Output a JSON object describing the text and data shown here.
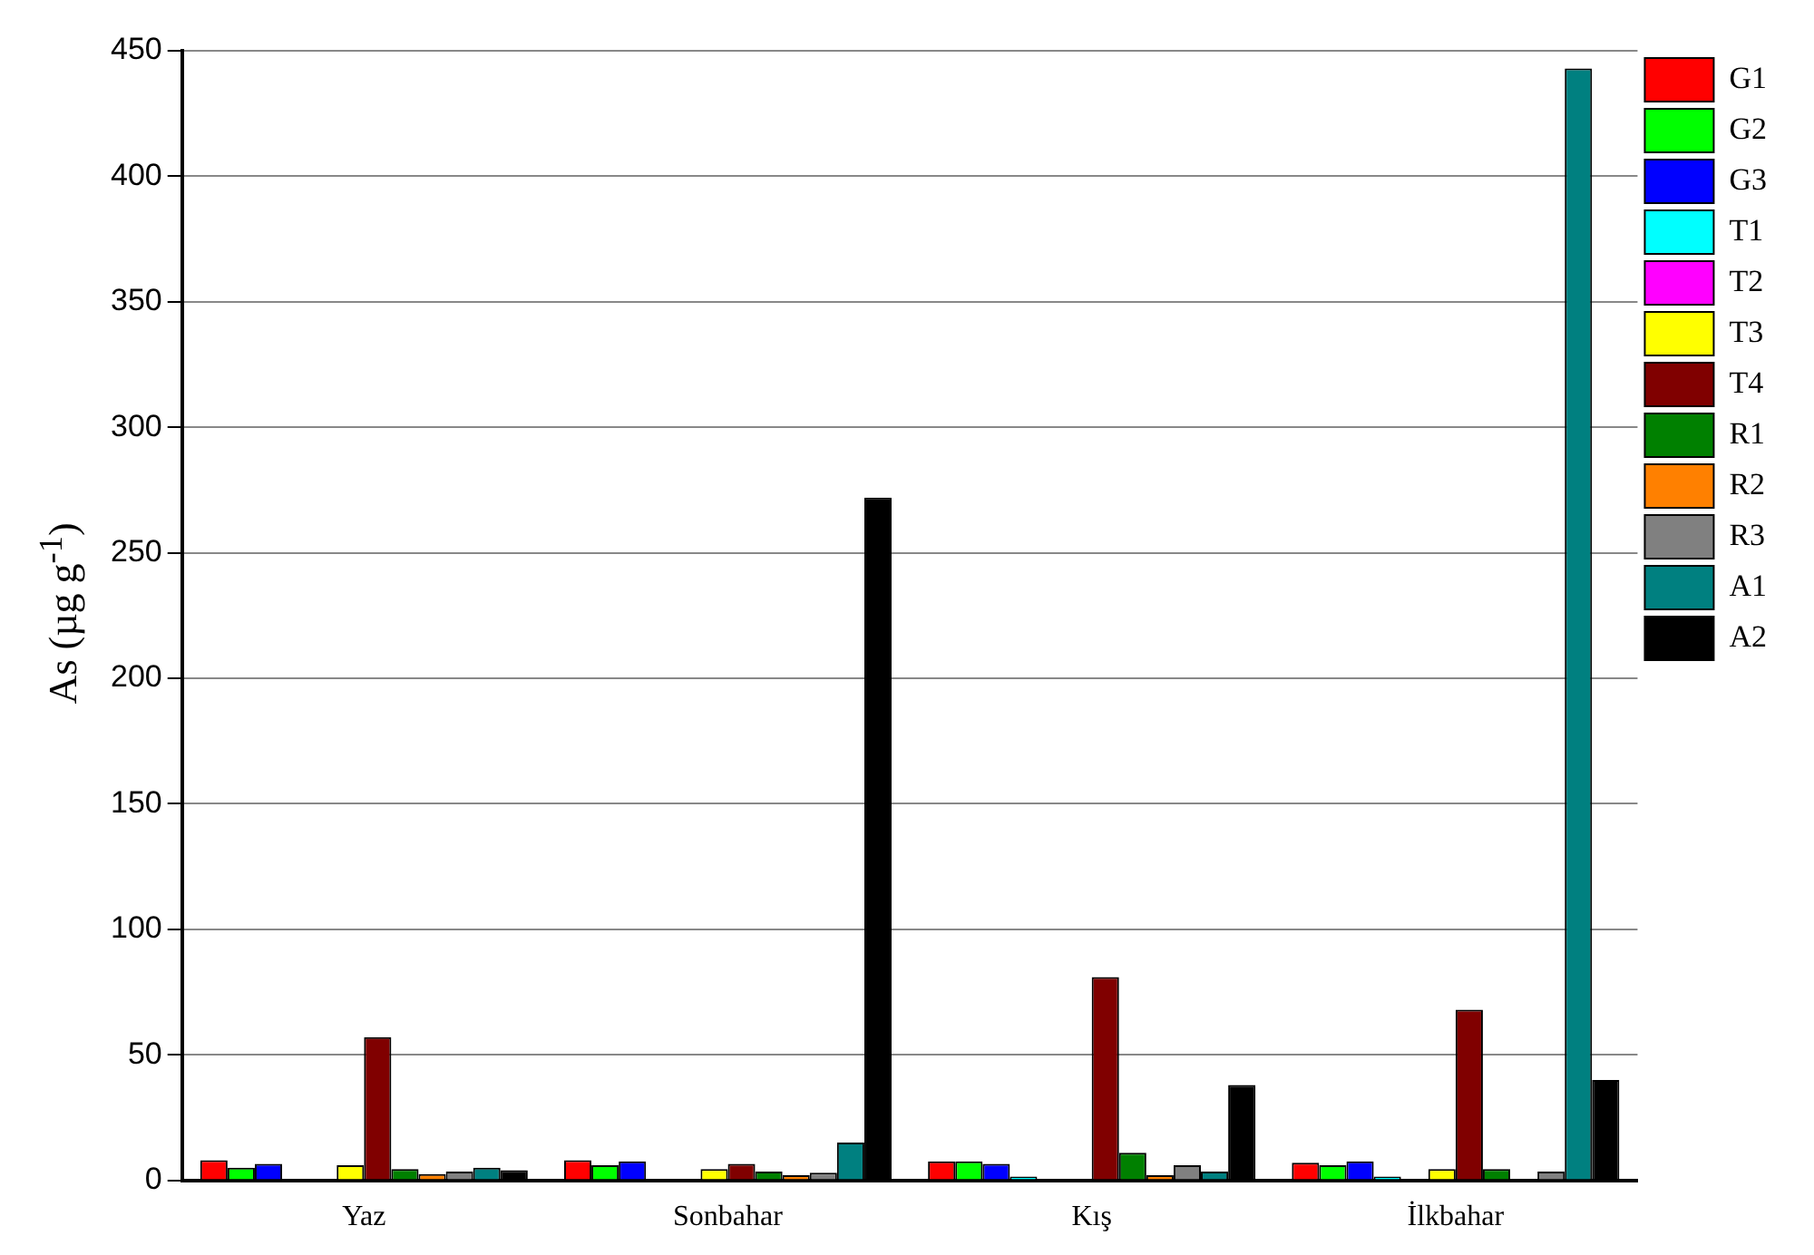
{
  "chart_data": {
    "type": "bar",
    "ylabel": "As (µg g$^{-1}$)",
    "categories": [
      "Yaz",
      "Sonbahar",
      "Kış",
      "İlkbahar"
    ],
    "series": [
      {
        "name": "G1",
        "color": "#ff0000",
        "values": [
          8,
          8,
          7.5,
          7
        ]
      },
      {
        "name": "G2",
        "color": "#00ff00",
        "values": [
          5,
          6,
          7.5,
          6
        ]
      },
      {
        "name": "G3",
        "color": "#0000ff",
        "values": [
          6.5,
          7.5,
          6.5,
          7.5
        ]
      },
      {
        "name": "T1",
        "color": "#00ffff",
        "values": [
          null,
          null,
          1.5,
          1.5
        ]
      },
      {
        "name": "T2",
        "color": "#ff00ff",
        "values": [
          0,
          0,
          null,
          0
        ]
      },
      {
        "name": "T3",
        "color": "#ffff00",
        "values": [
          6,
          4.5,
          0,
          4.5
        ]
      },
      {
        "name": "T4",
        "color": "#800000",
        "values": [
          57,
          6.5,
          81,
          68
        ]
      },
      {
        "name": "R1",
        "color": "#008000",
        "values": [
          4.5,
          3.5,
          11,
          4.5
        ]
      },
      {
        "name": "R2",
        "color": "#ff8000",
        "values": [
          2.5,
          2,
          2,
          null
        ]
      },
      {
        "name": "R3",
        "color": "#808080",
        "values": [
          3.5,
          3,
          6,
          3.5
        ]
      },
      {
        "name": "A1",
        "color": "#008080",
        "values": [
          5,
          15,
          3.5,
          443
        ]
      },
      {
        "name": "A2",
        "color": "#000000",
        "values": [
          4,
          272,
          38,
          40
        ]
      }
    ],
    "ylim": [
      0,
      450
    ],
    "yticks": [
      0,
      50,
      100,
      150,
      200,
      250,
      300,
      350,
      400,
      450
    ],
    "grid": "y",
    "legend": "right"
  }
}
